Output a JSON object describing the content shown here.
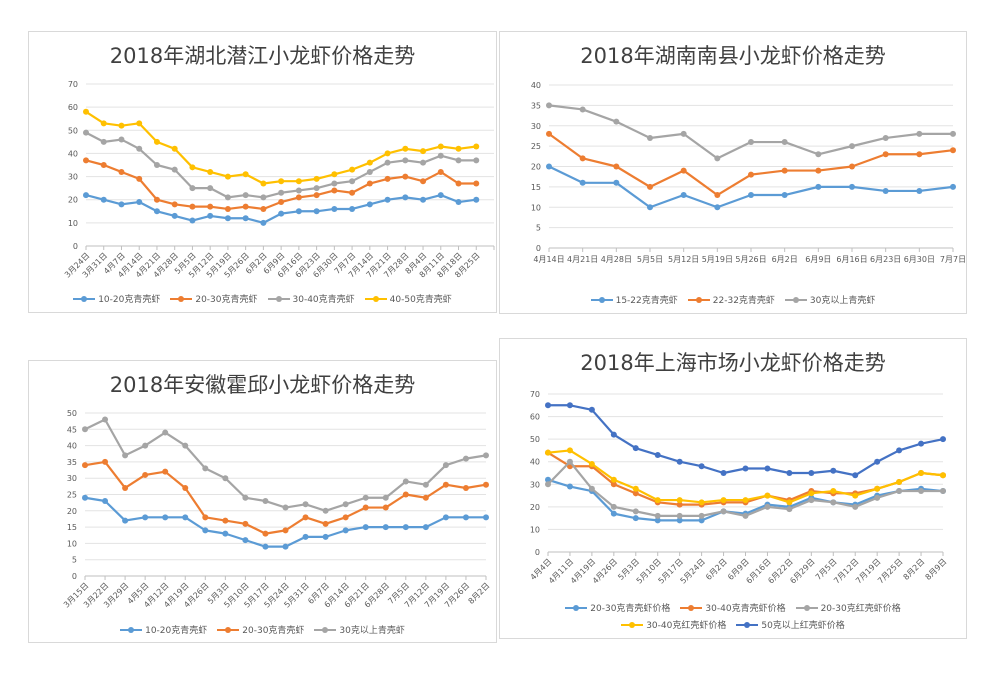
{
  "charts": [
    {
      "id": "hubei",
      "title": "2018年湖北潜江小龙虾价格走势",
      "chart_data": {
        "type": "line",
        "title": "2018年湖北潜江小龙虾价格走势",
        "xlabel": "",
        "ylabel": "",
        "ylim": [
          0,
          70
        ],
        "ystep": 10,
        "grid": true,
        "legend": "bottom",
        "categories": [
          "3月24日",
          "3月31日",
          "4月7日",
          "4月14日",
          "4月21日",
          "4月28日",
          "5月5日",
          "5月12日",
          "5月19日",
          "5月26日",
          "6月2日",
          "6月9日",
          "6月16日",
          "6月23日",
          "6月30日",
          "7月7日",
          "7月14日",
          "7月21日",
          "7月28日",
          "8月4日",
          "8月11日",
          "8月18日",
          "8月25日",
          ""
        ],
        "series": [
          {
            "name": "10-20克青壳虾",
            "color": "#5b9bd5",
            "values": [
              22,
              20,
              18,
              19,
              15,
              13,
              11,
              13,
              12,
              12,
              10,
              14,
              15,
              15,
              16,
              16,
              18,
              20,
              21,
              20,
              22,
              19,
              20,
              null
            ]
          },
          {
            "name": "20-30克青壳虾",
            "color": "#ed7d31",
            "values": [
              37,
              35,
              32,
              29,
              20,
              18,
              17,
              17,
              16,
              17,
              16,
              19,
              21,
              22,
              24,
              23,
              27,
              29,
              30,
              28,
              32,
              27,
              27,
              null
            ]
          },
          {
            "name": "30-40克青壳虾",
            "color": "#a5a5a5",
            "values": [
              49,
              45,
              46,
              42,
              35,
              33,
              25,
              25,
              21,
              22,
              21,
              23,
              24,
              25,
              27,
              28,
              32,
              36,
              37,
              36,
              39,
              37,
              37,
              null
            ]
          },
          {
            "name": "40-50克青壳虾",
            "color": "#ffc000",
            "values": [
              58,
              53,
              52,
              53,
              45,
              42,
              34,
              32,
              30,
              31,
              27,
              28,
              28,
              29,
              31,
              33,
              36,
              40,
              42,
              41,
              43,
              42,
              43,
              null
            ]
          }
        ]
      }
    },
    {
      "id": "hunan",
      "title": "2018年湖南南县小龙虾价格走势",
      "chart_data": {
        "type": "line",
        "title": "2018年湖南南县小龙虾价格走势",
        "xlabel": "",
        "ylabel": "",
        "ylim": [
          0,
          40
        ],
        "ystep": 5,
        "grid": true,
        "legend": "bottom",
        "categories": [
          "4月14日",
          "4月21日",
          "4月28日",
          "5月5日",
          "5月12日",
          "5月19日",
          "5月26日",
          "6月2日",
          "6月9日",
          "6月16日",
          "6月23日",
          "6月30日",
          "7月7日"
        ],
        "series": [
          {
            "name": "15-22克青壳虾",
            "color": "#5b9bd5",
            "values": [
              20,
              16,
              16,
              10,
              13,
              10,
              13,
              13,
              15,
              15,
              14,
              14,
              15
            ]
          },
          {
            "name": "22-32克青壳虾",
            "color": "#ed7d31",
            "values": [
              28,
              22,
              20,
              15,
              19,
              13,
              18,
              19,
              19,
              20,
              23,
              23,
              24
            ]
          },
          {
            "name": "30克以上青壳虾",
            "color": "#a5a5a5",
            "values": [
              35,
              34,
              31,
              27,
              28,
              22,
              26,
              26,
              23,
              25,
              27,
              28,
              28
            ]
          }
        ]
      }
    },
    {
      "id": "anhui",
      "title": "2018年安徽霍邱小龙虾价格走势",
      "chart_data": {
        "type": "line",
        "title": "2018年安徽霍邱小龙虾价格走势",
        "xlabel": "",
        "ylabel": "",
        "ylim": [
          0,
          50
        ],
        "ystep": 5,
        "grid": true,
        "legend": "bottom",
        "categories": [
          "3月15日",
          "3月22日",
          "3月29日",
          "4月5日",
          "4月12日",
          "4月19日",
          "4月26日",
          "5月3日",
          "5月10日",
          "5月17日",
          "5月24日",
          "5月31日",
          "6月7日",
          "6月14日",
          "6月21日",
          "6月28日",
          "7月5日",
          "7月12日",
          "7月19日",
          "7月26日",
          "8月2日"
        ],
        "series": [
          {
            "name": "10-20克青壳虾",
            "color": "#5b9bd5",
            "values": [
              24,
              23,
              17,
              18,
              18,
              18,
              14,
              13,
              11,
              9,
              9,
              12,
              12,
              14,
              15,
              15,
              15,
              15,
              18,
              18,
              18
            ]
          },
          {
            "name": "20-30克青壳虾",
            "color": "#ed7d31",
            "values": [
              34,
              35,
              27,
              31,
              32,
              27,
              18,
              17,
              16,
              13,
              14,
              18,
              16,
              18,
              21,
              21,
              25,
              24,
              28,
              27,
              28
            ]
          },
          {
            "name": "30克以上青壳虾",
            "color": "#a5a5a5",
            "values": [
              45,
              48,
              37,
              40,
              44,
              40,
              33,
              30,
              24,
              23,
              21,
              22,
              20,
              22,
              24,
              24,
              29,
              28,
              34,
              36,
              37
            ]
          }
        ]
      }
    },
    {
      "id": "shanghai",
      "title": "2018年上海市场小龙虾价格走势",
      "chart_data": {
        "type": "line",
        "title": "2018年上海市场小龙虾价格走势",
        "xlabel": "",
        "ylabel": "",
        "ylim": [
          0,
          70
        ],
        "ystep": 10,
        "grid": true,
        "legend": "bottom",
        "categories": [
          "4月4日",
          "4月11日",
          "4月19日",
          "4月26日",
          "5月3日",
          "5月10日",
          "5月17日",
          "5月24日",
          "6月2日",
          "6月9日",
          "6月16日",
          "6月22日",
          "6月29日",
          "7月5日",
          "7月12日",
          "7月19日",
          "7月25日",
          "8月2日",
          "8月9日"
        ],
        "series": [
          {
            "name": "20-30克青壳虾价格",
            "color": "#5b9bd5",
            "values": [
              32,
              29,
              27,
              17,
              15,
              14,
              14,
              14,
              18,
              17,
              21,
              20,
              24,
              22,
              21,
              25,
              27,
              28,
              27
            ]
          },
          {
            "name": "30-40克青壳虾价格",
            "color": "#ed7d31",
            "values": [
              44,
              38,
              38,
              30,
              26,
              22,
              21,
              21,
              22,
              22,
              25,
              23,
              27,
              26,
              26,
              28,
              31,
              35,
              34
            ]
          },
          {
            "name": "20-30克红壳虾价格",
            "color": "#a5a5a5",
            "values": [
              30,
              40,
              28,
              20,
              18,
              16,
              16,
              16,
              18,
              16,
              20,
              19,
              23,
              22,
              20,
              24,
              27,
              27,
              27
            ]
          },
          {
            "name": "30-40克红壳虾价格",
            "color": "#ffc000",
            "values": [
              44,
              45,
              39,
              32,
              28,
              23,
              23,
              22,
              23,
              23,
              25,
              22,
              26,
              27,
              25,
              28,
              31,
              35,
              34
            ]
          },
          {
            "name": "50克以上红壳虾价格",
            "color": "#4472c4",
            "values": [
              65,
              65,
              63,
              52,
              46,
              43,
              40,
              38,
              35,
              37,
              37,
              35,
              35,
              36,
              34,
              40,
              45,
              48,
              50
            ]
          }
        ],
        "legend_rows": [
          [
            0,
            1,
            2
          ],
          [
            3,
            4
          ]
        ]
      }
    }
  ]
}
